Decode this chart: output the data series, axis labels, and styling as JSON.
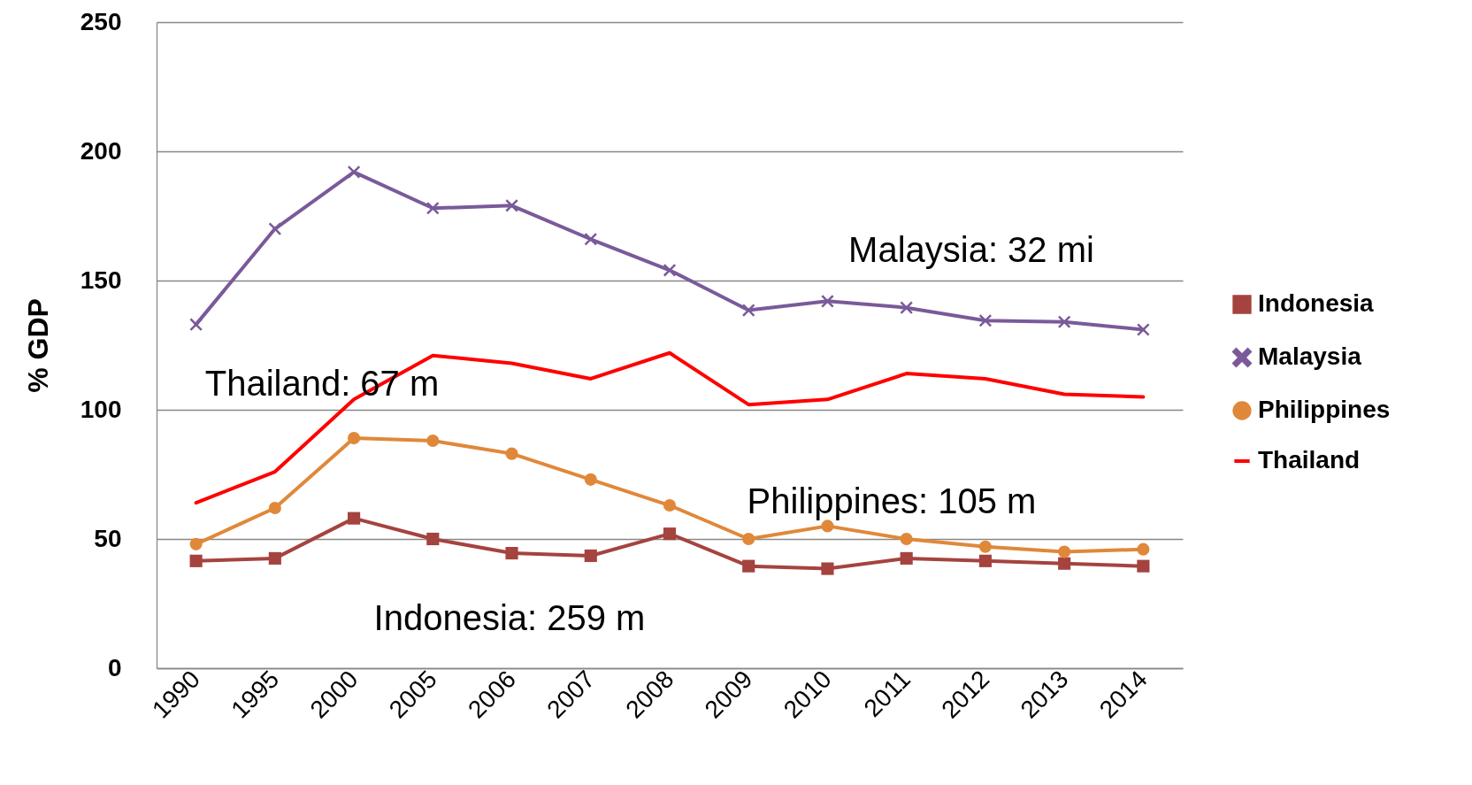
{
  "chart_data": {
    "type": "line",
    "ylabel": "% GDP",
    "categories": [
      "1990",
      "1995",
      "2000",
      "2005",
      "2006",
      "2007",
      "2008",
      "2009",
      "2010",
      "2011",
      "2012",
      "2013",
      "2014"
    ],
    "series": [
      {
        "name": "Indonesia",
        "color": "#a5433f",
        "marker": "square",
        "values": [
          41.5,
          42.5,
          58,
          50,
          44.5,
          43.5,
          52,
          39.5,
          38.5,
          42.5,
          41.5,
          40.5,
          39.5
        ]
      },
      {
        "name": "Malaysia",
        "color": "#7a5a9a",
        "marker": "cross",
        "values": [
          133,
          170,
          192,
          178,
          179,
          166,
          154,
          138.5,
          142,
          139.5,
          134.5,
          134,
          131
        ]
      },
      {
        "name": "Philippines",
        "color": "#e0883a",
        "marker": "circle",
        "values": [
          48,
          62,
          89,
          88,
          83,
          73,
          63,
          50,
          55,
          50,
          47,
          45,
          46
        ]
      },
      {
        "name": "Thailand",
        "color": "#ff0000",
        "marker": "none",
        "values": [
          64,
          76,
          104,
          121,
          118,
          112,
          122,
          102,
          104,
          114,
          112,
          106,
          105
        ]
      }
    ],
    "ylim": [
      0,
      250
    ],
    "yticks": [
      0,
      50,
      100,
      150,
      200,
      250
    ],
    "grid": "y",
    "legend": "right",
    "annotations": [
      "Malaysia:  32 mi",
      "Thailand: 67 m",
      "Philippines: 105 m",
      "Indonesia: 259 m"
    ]
  }
}
